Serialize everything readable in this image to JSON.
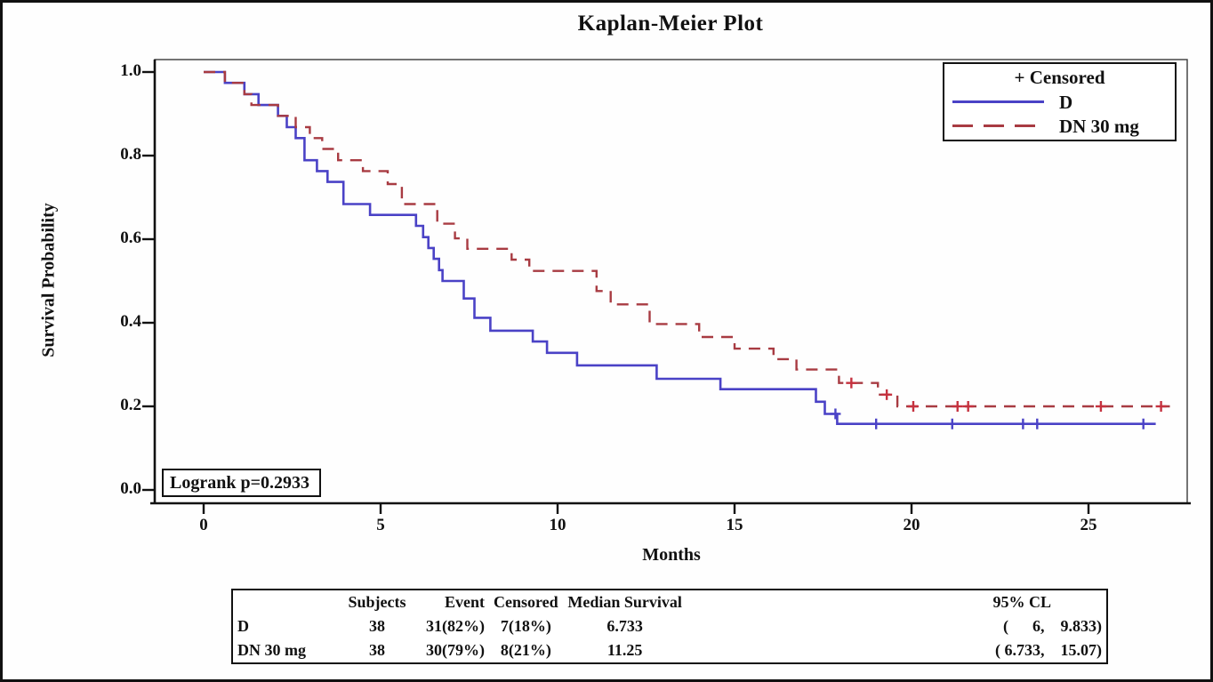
{
  "title": "Kaplan-Meier Plot",
  "axes": {
    "x": {
      "label": "Months",
      "ticks": [
        "0",
        "5",
        "10",
        "15",
        "20",
        "25"
      ]
    },
    "y": {
      "label": "Survival Probability",
      "ticks": [
        "0.0",
        "0.2",
        "0.4",
        "0.6",
        "0.8",
        "1.0"
      ]
    }
  },
  "legend": {
    "censored_label": "+ Censored",
    "entries": [
      {
        "label": "D"
      },
      {
        "label": "DN 30 mg"
      }
    ]
  },
  "annotation": {
    "logrank": "Logrank p=0.2933"
  },
  "colors": {
    "d_line": "#4a42c6",
    "d_censor": "#4a42c6",
    "dn_line": "#a83b42",
    "dn_censor": "#c5323f",
    "axis": "#111111",
    "frame": "#3a3a3a",
    "text": "#111111"
  },
  "chart_data": {
    "type": "line",
    "subtype": "kaplan-meier-step",
    "title": "Kaplan-Meier Plot",
    "xlabel": "Months",
    "ylabel": "Survival Probability",
    "xlim": [
      0,
      27.8
    ],
    "ylim": [
      0,
      1.0
    ],
    "x_ticks": [
      0,
      5,
      10,
      15,
      20,
      25
    ],
    "y_ticks": [
      0,
      0.2,
      0.4,
      0.6,
      0.8,
      1.0
    ],
    "grid": false,
    "legend_position": "top-right",
    "annotations": [
      {
        "text": "Logrank p=0.2933",
        "position": "bottom-left"
      }
    ],
    "series": [
      {
        "name": "D",
        "style": "solid",
        "color": "#4a42c6",
        "points": [
          [
            0,
            1.0
          ],
          [
            0.6,
            0.974
          ],
          [
            1.15,
            0.947
          ],
          [
            1.55,
            0.921
          ],
          [
            2.1,
            0.895
          ],
          [
            2.35,
            0.868
          ],
          [
            2.6,
            0.842
          ],
          [
            2.85,
            0.789
          ],
          [
            3.2,
            0.763
          ],
          [
            3.5,
            0.737
          ],
          [
            3.95,
            0.684
          ],
          [
            4.7,
            0.658
          ],
          [
            6.0,
            0.632
          ],
          [
            6.2,
            0.605
          ],
          [
            6.35,
            0.579
          ],
          [
            6.5,
            0.553
          ],
          [
            6.65,
            0.526
          ],
          [
            6.75,
            0.5
          ],
          [
            7.35,
            0.458
          ],
          [
            7.65,
            0.412
          ],
          [
            8.1,
            0.381
          ],
          [
            9.3,
            0.355
          ],
          [
            9.7,
            0.328
          ],
          [
            10.55,
            0.298
          ],
          [
            12.8,
            0.266
          ],
          [
            14.6,
            0.241
          ],
          [
            17.3,
            0.211
          ],
          [
            17.55,
            0.182
          ],
          [
            17.9,
            0.158
          ],
          [
            26.9,
            0.158
          ]
        ],
        "censored": [
          [
            17.85,
            0.182
          ],
          [
            19.0,
            0.158
          ],
          [
            21.15,
            0.158
          ],
          [
            23.15,
            0.158
          ],
          [
            23.55,
            0.158
          ],
          [
            26.55,
            0.158
          ]
        ]
      },
      {
        "name": "DN 30 mg",
        "style": "dashed",
        "color": "#a83b42",
        "points": [
          [
            0,
            1.0
          ],
          [
            0.6,
            0.974
          ],
          [
            1.15,
            0.947
          ],
          [
            1.35,
            0.921
          ],
          [
            2.1,
            0.895
          ],
          [
            2.6,
            0.868
          ],
          [
            3.0,
            0.842
          ],
          [
            3.35,
            0.816
          ],
          [
            3.8,
            0.789
          ],
          [
            4.5,
            0.763
          ],
          [
            5.2,
            0.732
          ],
          [
            5.6,
            0.684
          ],
          [
            6.6,
            0.637
          ],
          [
            7.1,
            0.602
          ],
          [
            7.45,
            0.577
          ],
          [
            8.7,
            0.551
          ],
          [
            9.2,
            0.524
          ],
          [
            11.1,
            0.476
          ],
          [
            11.5,
            0.444
          ],
          [
            12.6,
            0.397
          ],
          [
            14.0,
            0.366
          ],
          [
            15.0,
            0.338
          ],
          [
            16.1,
            0.313
          ],
          [
            16.75,
            0.288
          ],
          [
            17.95,
            0.256
          ],
          [
            19.05,
            0.228
          ],
          [
            19.6,
            0.2
          ],
          [
            27.3,
            0.2
          ]
        ],
        "censored": [
          [
            18.3,
            0.256
          ],
          [
            19.3,
            0.228
          ],
          [
            20.05,
            0.2
          ],
          [
            21.3,
            0.2
          ],
          [
            21.6,
            0.2
          ],
          [
            25.35,
            0.2
          ],
          [
            27.05,
            0.2
          ]
        ]
      }
    ]
  },
  "summary_table": {
    "headers": [
      "",
      "Subjects",
      "Event",
      "Censored",
      "Median Survival",
      "95% CL"
    ],
    "rows": [
      {
        "cells": [
          "D",
          "38",
          "31(82%)",
          "7(18%)",
          "6.733",
          "(      6,    9.833)"
        ]
      },
      {
        "cells": [
          "DN 30 mg",
          "38",
          "30(79%)",
          "8(21%)",
          "11.25",
          "( 6.733,    15.07)"
        ]
      }
    ]
  }
}
